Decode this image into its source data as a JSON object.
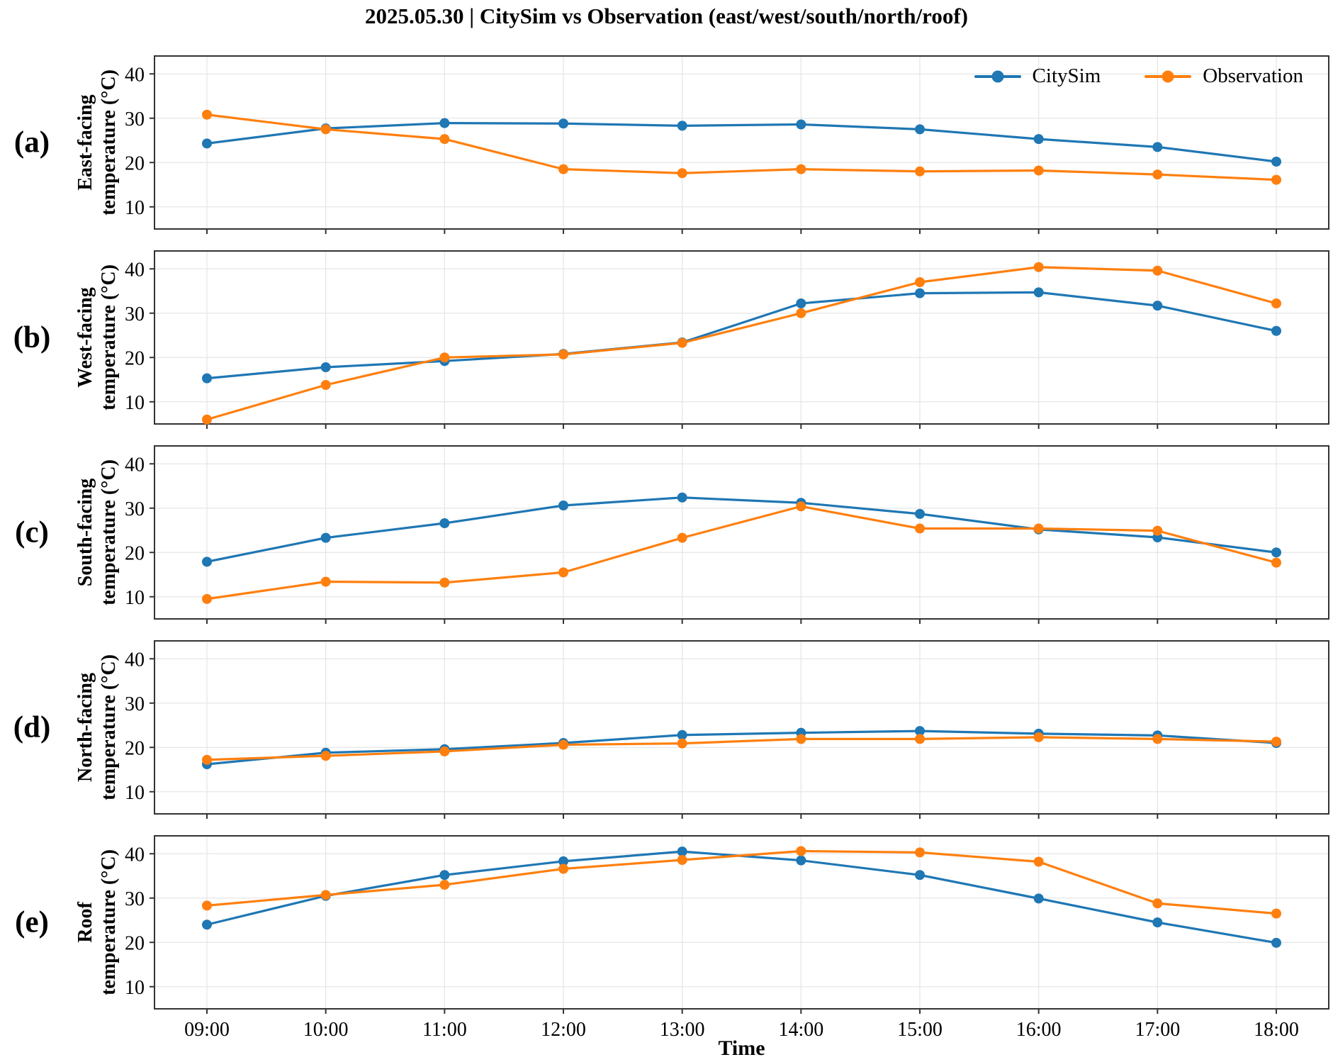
{
  "figure": {
    "title": "2025.05.30 | CitySim vs Observation (east/west/south/north/roof)",
    "xlabel": "Time",
    "background": "#ffffff",
    "grid_color": "#e6e6e6",
    "spine_color": "#333333"
  },
  "legend": {
    "position": "upper right of panel (a)",
    "items": [
      {
        "label": "CitySim",
        "color": "#1f77b4"
      },
      {
        "label": "Observation",
        "color": "#ff7f0e"
      }
    ]
  },
  "chart_data": [
    {
      "type": "line",
      "panel_label": "(a)",
      "ylabel": "East-facing\ntemperature (°C)",
      "categories": [
        "09:00",
        "10:00",
        "11:00",
        "12:00",
        "13:00",
        "14:00",
        "15:00",
        "16:00",
        "17:00",
        "18:00"
      ],
      "yticks": [
        40,
        30,
        20,
        10
      ],
      "ylim": [
        5.0,
        44.2
      ],
      "grid": true,
      "series": [
        {
          "name": "CitySim",
          "color": "#1f77b4",
          "values": [
            24.3,
            27.7,
            28.9,
            28.8,
            28.3,
            28.6,
            27.5,
            25.3,
            23.5,
            20.2
          ]
        },
        {
          "name": "Observation",
          "color": "#ff7f0e",
          "values": [
            30.8,
            27.5,
            25.3,
            18.5,
            17.6,
            18.5,
            18.0,
            18.2,
            17.3,
            16.1
          ]
        }
      ]
    },
    {
      "type": "line",
      "panel_label": "(b)",
      "ylabel": "West-facing\ntemperature (°C)",
      "categories": [
        "09:00",
        "10:00",
        "11:00",
        "12:00",
        "13:00",
        "14:00",
        "15:00",
        "16:00",
        "17:00",
        "18:00"
      ],
      "yticks": [
        40,
        30,
        20,
        10
      ],
      "ylim": [
        5.0,
        44.2
      ],
      "grid": true,
      "series": [
        {
          "name": "CitySim",
          "color": "#1f77b4",
          "values": [
            15.3,
            17.8,
            19.2,
            20.8,
            23.4,
            32.2,
            34.5,
            34.7,
            31.7,
            26.0
          ]
        },
        {
          "name": "Observation",
          "color": "#ff7f0e",
          "values": [
            6.0,
            13.8,
            20.0,
            20.7,
            23.3,
            30.0,
            37.0,
            40.4,
            39.6,
            32.2
          ]
        }
      ]
    },
    {
      "type": "line",
      "panel_label": "(c)",
      "ylabel": "South-facing\ntemperature (°C)",
      "categories": [
        "09:00",
        "10:00",
        "11:00",
        "12:00",
        "13:00",
        "14:00",
        "15:00",
        "16:00",
        "17:00",
        "18:00"
      ],
      "yticks": [
        40,
        30,
        20,
        10
      ],
      "ylim": [
        5.0,
        44.2
      ],
      "grid": true,
      "series": [
        {
          "name": "CitySim",
          "color": "#1f77b4",
          "values": [
            17.9,
            23.3,
            26.6,
            30.6,
            32.4,
            31.2,
            28.7,
            25.2,
            23.4,
            20.0
          ]
        },
        {
          "name": "Observation",
          "color": "#ff7f0e",
          "values": [
            9.5,
            13.4,
            13.2,
            15.5,
            23.3,
            30.4,
            25.4,
            25.4,
            24.9,
            17.7
          ]
        }
      ]
    },
    {
      "type": "line",
      "panel_label": "(d)",
      "ylabel": "North-facing\ntemperature (°C)",
      "categories": [
        "09:00",
        "10:00",
        "11:00",
        "12:00",
        "13:00",
        "14:00",
        "15:00",
        "16:00",
        "17:00",
        "18:00"
      ],
      "yticks": [
        40,
        30,
        20,
        10
      ],
      "ylim": [
        5.0,
        44.2
      ],
      "grid": true,
      "series": [
        {
          "name": "CitySim",
          "color": "#1f77b4",
          "values": [
            16.2,
            18.8,
            19.6,
            21.0,
            22.8,
            23.3,
            23.7,
            23.1,
            22.7,
            21.0
          ]
        },
        {
          "name": "Observation",
          "color": "#ff7f0e",
          "values": [
            17.2,
            18.1,
            19.1,
            20.6,
            20.9,
            21.9,
            21.9,
            22.3,
            21.9,
            21.3
          ]
        }
      ]
    },
    {
      "type": "line",
      "panel_label": "(e)",
      "ylabel": "Roof\ntemperature (°C)",
      "categories": [
        "09:00",
        "10:00",
        "11:00",
        "12:00",
        "13:00",
        "14:00",
        "15:00",
        "16:00",
        "17:00",
        "18:00"
      ],
      "yticks": [
        40,
        30,
        20,
        10
      ],
      "ylim": [
        5.0,
        44.2
      ],
      "grid": true,
      "series": [
        {
          "name": "CitySim",
          "color": "#1f77b4",
          "values": [
            24.0,
            30.5,
            35.2,
            38.3,
            40.5,
            38.5,
            35.2,
            29.9,
            24.5,
            19.9
          ]
        },
        {
          "name": "Observation",
          "color": "#ff7f0e",
          "values": [
            28.3,
            30.7,
            33.0,
            36.6,
            38.6,
            40.6,
            40.3,
            38.2,
            28.8,
            26.5
          ]
        }
      ]
    }
  ]
}
